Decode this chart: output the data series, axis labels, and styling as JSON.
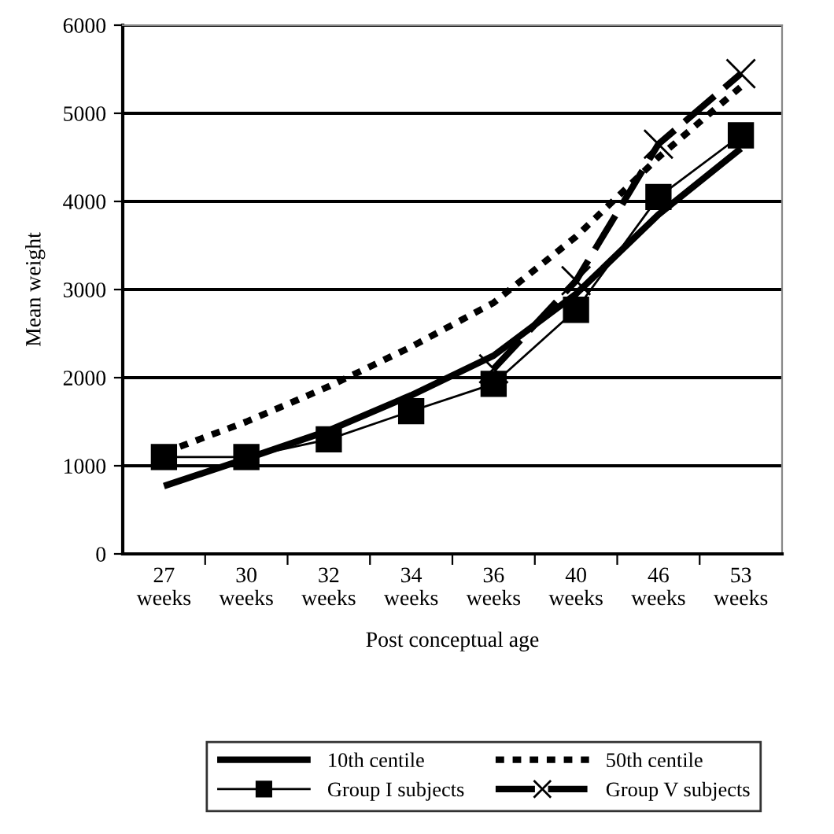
{
  "chart_data": {
    "type": "line",
    "xlabel": "Post conceptual age",
    "ylabel": "Mean weight",
    "categories": [
      "27\nweeks",
      "30\nweeks",
      "32\nweeks",
      "34\nweeks",
      "36\nweeks",
      "40\nweeks",
      "46\nweeks",
      "53\nweeks"
    ],
    "series": [
      {
        "name": "10th centile",
        "color": "#000000",
        "line_style": "solid",
        "marker": "none",
        "values": [
          770,
          1080,
          1400,
          1800,
          2250,
          2950,
          3850,
          4600
        ]
      },
      {
        "name": "50th centile",
        "color": "#000000",
        "line_style": "dotted",
        "marker": "none",
        "values": [
          1150,
          1500,
          1900,
          2350,
          2850,
          3600,
          4500,
          5300
        ]
      },
      {
        "name": "Group I subjects",
        "color": "#000000",
        "line_style": "solid",
        "marker": "square",
        "values": [
          1100,
          1100,
          1300,
          1620,
          1930,
          2770,
          4050,
          4750
        ]
      },
      {
        "name": "Group V subjects",
        "color": "#000000",
        "line_style": "dashed",
        "marker": "cross",
        "values": [
          null,
          null,
          null,
          null,
          2100,
          3100,
          4650,
          5450
        ]
      }
    ],
    "ylim": [
      0,
      6000
    ],
    "yticks": [
      0,
      1000,
      2000,
      3000,
      4000,
      5000,
      6000
    ],
    "grid": "y",
    "legend": "bottom"
  }
}
